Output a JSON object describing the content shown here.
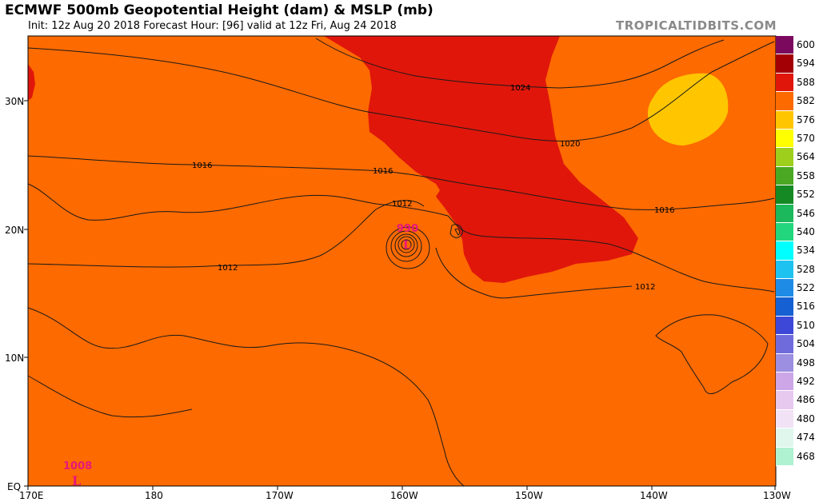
{
  "header": {
    "title": "ECMWF 500mb Geopotential Height (dam) & MSLP (mb)",
    "subtitle": "Init: 12z Aug 20 2018   Forecast Hour: [96]   valid at 12z Fri, Aug 24 2018",
    "watermark": "TROPICALTIDBITS.COM"
  },
  "axes": {
    "lon_labels": [
      "170E",
      "180",
      "170W",
      "160W",
      "150W",
      "140W",
      "130W"
    ],
    "lat_labels": [
      "30N",
      "20N",
      "10N",
      "EQ"
    ]
  },
  "isobar_labels": {
    "p1024": "1024",
    "p1020": "1020",
    "p1016_west": "1016",
    "p1016_mid": "1016",
    "p1016_east": "1016",
    "p1012_north": "1012",
    "p1012_west": "1012",
    "p1012_east": "1012"
  },
  "pressure_centers": {
    "hurricane_value": "990",
    "hurricane_symbol": "L",
    "sw_value": "1008",
    "sw_symbol": "L"
  },
  "colorbar": {
    "levels": [
      "600",
      "594",
      "588",
      "582",
      "576",
      "570",
      "564",
      "558",
      "552",
      "546",
      "540",
      "534",
      "528",
      "522",
      "516",
      "510",
      "504",
      "498",
      "492",
      "486",
      "480",
      "474",
      "468"
    ],
    "colors": [
      "#7b0a5f",
      "#a30006",
      "#e0160b",
      "#fd6a00",
      "#ffc600",
      "#ffff00",
      "#9dcf1c",
      "#4aa823",
      "#158a24",
      "#1cb85c",
      "#22d67e",
      "#00ffff",
      "#1ec2f0",
      "#1e8ce6",
      "#1560d2",
      "#3e48d8",
      "#6f6bdc",
      "#9c8ee0",
      "#cca6e6",
      "#e7c8ef",
      "#f2e2f5",
      "#dff7ed",
      "#aef2d1"
    ]
  },
  "fill_colors": {
    "background_588_582": "#fd6a00",
    "ridge_588": "#e0160b",
    "ridge_edge_594": "#e5241a",
    "warm_576": "#ffc600"
  }
}
